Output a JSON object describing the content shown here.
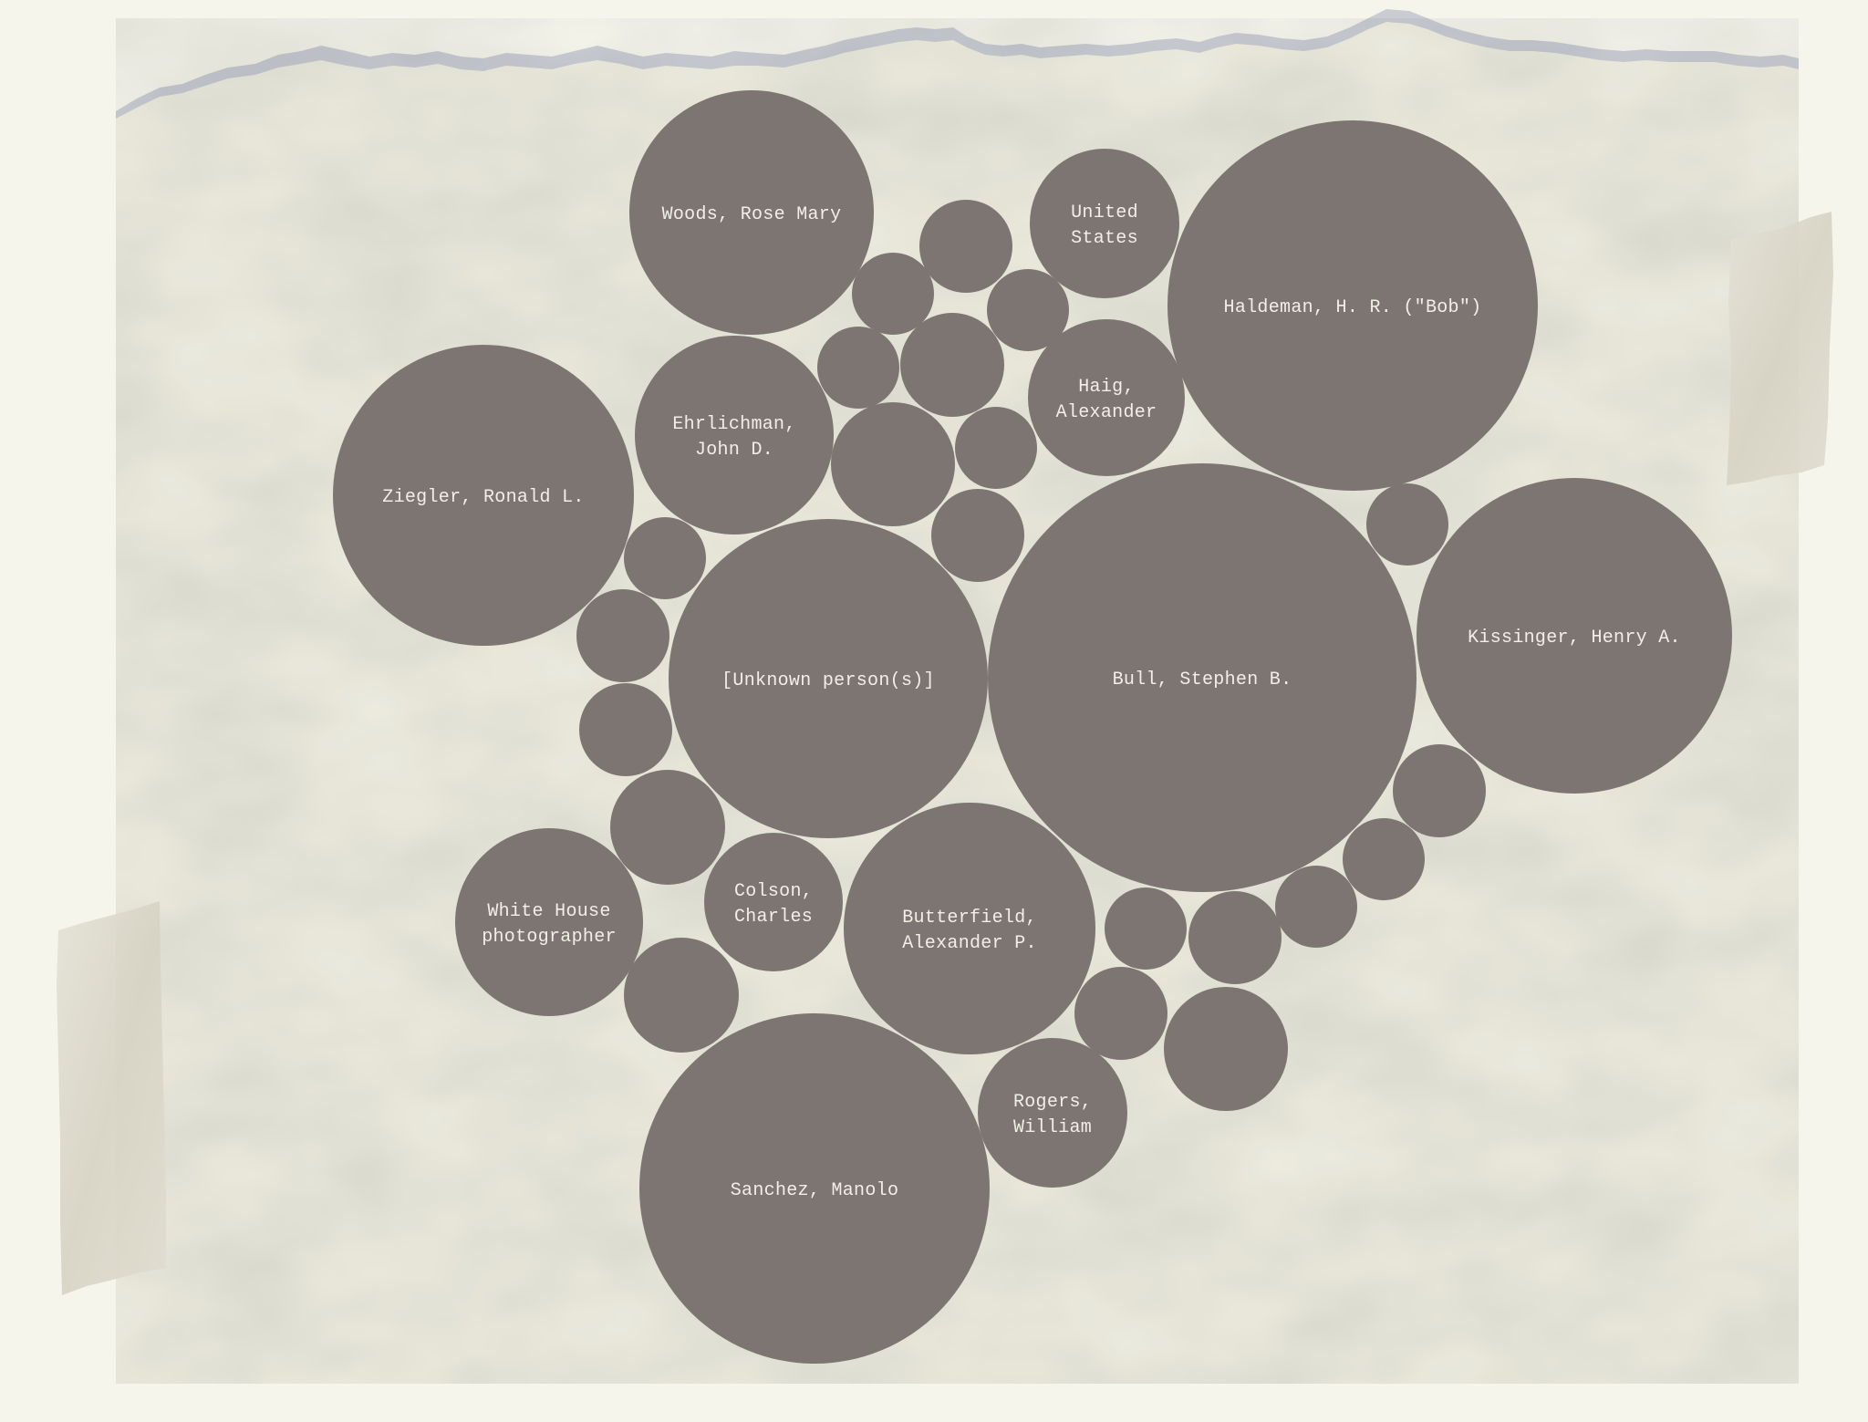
{
  "colors": {
    "page_background": "#f5f5ec",
    "paper": "#efeee1",
    "paper_torn_edge": "#c9ccd3",
    "tape": "#dcdacc",
    "bubble_fill": "#7d7572",
    "label_text": "#f1efe6"
  },
  "diagram": {
    "type": "packed-bubble",
    "bubbles": [
      {
        "id": "woods",
        "label": [
          "Woods, Rose Mary"
        ]
      },
      {
        "id": "united-states",
        "label": [
          "United",
          "States"
        ]
      },
      {
        "id": "haldeman",
        "label": [
          "Haldeman, H. R. (\"Bob\")"
        ]
      },
      {
        "id": "ehrlichman",
        "label": [
          "Ehrlichman,",
          "John D."
        ]
      },
      {
        "id": "haig",
        "label": [
          "Haig,",
          "Alexander"
        ]
      },
      {
        "id": "ziegler",
        "label": [
          "Ziegler, Ronald L."
        ]
      },
      {
        "id": "kissinger",
        "label": [
          "Kissinger, Henry A."
        ]
      },
      {
        "id": "unknown",
        "label": [
          "[Unknown person(s)]"
        ]
      },
      {
        "id": "bull",
        "label": [
          "Bull, Stephen B."
        ]
      },
      {
        "id": "white-house-photographer",
        "label": [
          "White House",
          "photographer"
        ]
      },
      {
        "id": "colson",
        "label": [
          "Colson,",
          "Charles"
        ]
      },
      {
        "id": "butterfield",
        "label": [
          "Butterfield,",
          "Alexander P."
        ]
      },
      {
        "id": "rogers",
        "label": [
          "Rogers,",
          "William"
        ]
      },
      {
        "id": "sanchez",
        "label": [
          "Sanchez, Manolo"
        ]
      },
      {
        "id": "small-1",
        "label": []
      },
      {
        "id": "small-2",
        "label": []
      },
      {
        "id": "small-3",
        "label": []
      },
      {
        "id": "small-4",
        "label": []
      },
      {
        "id": "small-5",
        "label": []
      },
      {
        "id": "small-6",
        "label": []
      },
      {
        "id": "small-7",
        "label": []
      },
      {
        "id": "small-8",
        "label": []
      },
      {
        "id": "small-9",
        "label": []
      },
      {
        "id": "small-10",
        "label": []
      },
      {
        "id": "small-11",
        "label": []
      },
      {
        "id": "small-12",
        "label": []
      },
      {
        "id": "small-13",
        "label": []
      },
      {
        "id": "small-14",
        "label": []
      },
      {
        "id": "small-15",
        "label": []
      },
      {
        "id": "small-16",
        "label": []
      },
      {
        "id": "small-17",
        "label": []
      },
      {
        "id": "small-18",
        "label": []
      },
      {
        "id": "small-19",
        "label": []
      },
      {
        "id": "small-20",
        "label": []
      },
      {
        "id": "small-21",
        "label": []
      },
      {
        "id": "small-22",
        "label": []
      },
      {
        "id": "small-23",
        "label": []
      }
    ]
  }
}
